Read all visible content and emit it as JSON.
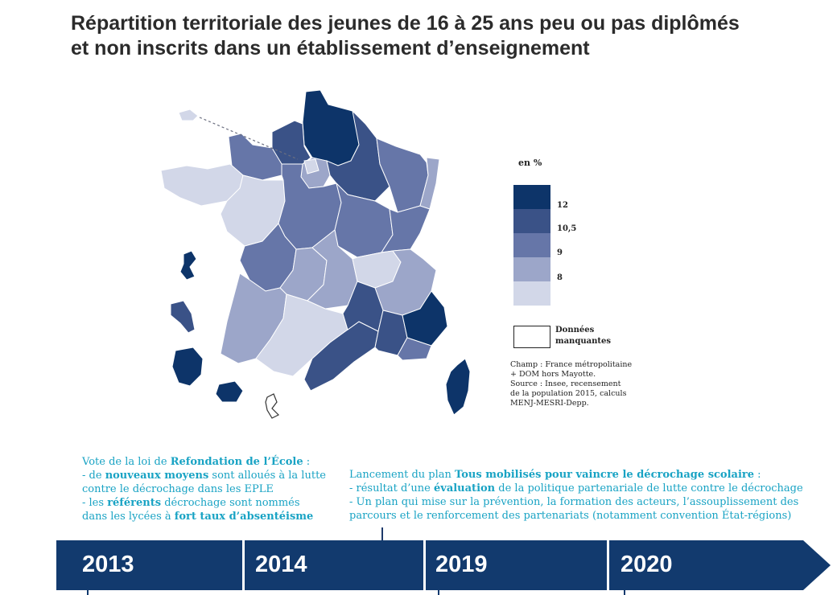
{
  "title_line1": "Répartition territoriale des jeunes de 16 à 25 ans peu ou pas diplômés",
  "title_line2": "et non inscrits dans un établissement d’enseignement",
  "legend": {
    "unit": "en %",
    "classes": [
      {
        "label": "12",
        "color": "#0d3469"
      },
      {
        "label": "10,5",
        "color": "#3a5287"
      },
      {
        "label": "9",
        "color": "#6676a8"
      },
      {
        "label": "8",
        "color": "#9ca6c9"
      },
      {
        "label": "",
        "color": "#d2d7e8"
      }
    ],
    "missing_line1": "Données",
    "missing_line2": "manquantes"
  },
  "source_lines": [
    "Champ : France métropolitaine",
    "+ DOM hors Mayotte.",
    "Source : Insee, recensement",
    "de la population 2015, calculs",
    "MENJ-MESRI-Depp."
  ],
  "regions": [
    {
      "name": "Hauts-de-France (nord)",
      "color": "#0d3469"
    },
    {
      "name": "Normandie (est)",
      "color": "#3a5287"
    },
    {
      "name": "Normandie (ouest)",
      "color": "#6676a8"
    },
    {
      "name": "Île-de-France",
      "color": "#9ca6c9"
    },
    {
      "name": "Paris",
      "color": "#d2d7e8"
    },
    {
      "name": "Champagne-Ardenne",
      "color": "#3a5287"
    },
    {
      "name": "Lorraine",
      "color": "#6676a8"
    },
    {
      "name": "Alsace",
      "color": "#9ca6c9"
    },
    {
      "name": "Bretagne",
      "color": "#d2d7e8"
    },
    {
      "name": "Pays de la Loire",
      "color": "#d2d7e8"
    },
    {
      "name": "Centre-Val de Loire",
      "color": "#6676a8"
    },
    {
      "name": "Bourgogne",
      "color": "#6676a8"
    },
    {
      "name": "Franche-Comté",
      "color": "#6676a8"
    },
    {
      "name": "Poitou-Charentes",
      "color": "#6676a8"
    },
    {
      "name": "Limousin",
      "color": "#9ca6c9"
    },
    {
      "name": "Auvergne",
      "color": "#9ca6c9"
    },
    {
      "name": "Rhône",
      "color": "#d2d7e8"
    },
    {
      "name": "Alpes",
      "color": "#9ca6c9"
    },
    {
      "name": "Aquitaine",
      "color": "#9ca6c9"
    },
    {
      "name": "Midi-Pyrénées",
      "color": "#d2d7e8"
    },
    {
      "name": "Languedoc-Roussillon",
      "color": "#3a5287"
    },
    {
      "name": "Gard-Hérault",
      "color": "#3a5287"
    },
    {
      "name": "Var",
      "color": "#3a5287"
    },
    {
      "name": "Alpes-Maritimes",
      "color": "#0d3469"
    },
    {
      "name": "Provence",
      "color": "#6676a8"
    },
    {
      "name": "Corse",
      "color": "#0d3469"
    },
    {
      "name": "Guadeloupe",
      "color": "#0d3469"
    },
    {
      "name": "Martinique",
      "color": "#3a5287"
    },
    {
      "name": "Guyane",
      "color": "#0d3469"
    },
    {
      "name": "La Réunion",
      "color": "#0d3469"
    },
    {
      "name": "Mayotte",
      "color": "#ffffff"
    },
    {
      "name": "Saint-Pierre-et-Miquelon",
      "color": "#d2d7e8"
    }
  ],
  "events": {
    "e2013": {
      "l1a": "Vote de la loi de ",
      "l1b": "Refondation de l’École",
      "l1c": " :",
      "l2a": "- de ",
      "l2b": "nouveaux moyens",
      "l2c": " sont alloués à la lutte",
      "l3": "contre le décrochage dans les EPLE",
      "l4a": "- les ",
      "l4b": "référents",
      "l4c": " décrochage sont nommés",
      "l5a": "dans les lycées à ",
      "l5b": "fort taux d’absentéisme"
    },
    "e2014": {
      "l1a": "Lancement du plan ",
      "l1b": "Tous mobilisés pour vaincre le décrochage scolaire",
      "l1c": " :",
      "l2a": "- résultat d’une ",
      "l2b": "évaluation",
      "l2c": " de la politique partenariale de lutte contre le décrochage",
      "l3": "- Un plan qui mise sur la prévention, la formation des acteurs, l’assouplissement des",
      "l4": "parcours et le renforcement des partenariats (notamment convention État-régions)"
    }
  },
  "timeline": {
    "color": "#123a6e",
    "years": [
      "2013",
      "2014",
      "2019",
      "2020"
    ]
  }
}
